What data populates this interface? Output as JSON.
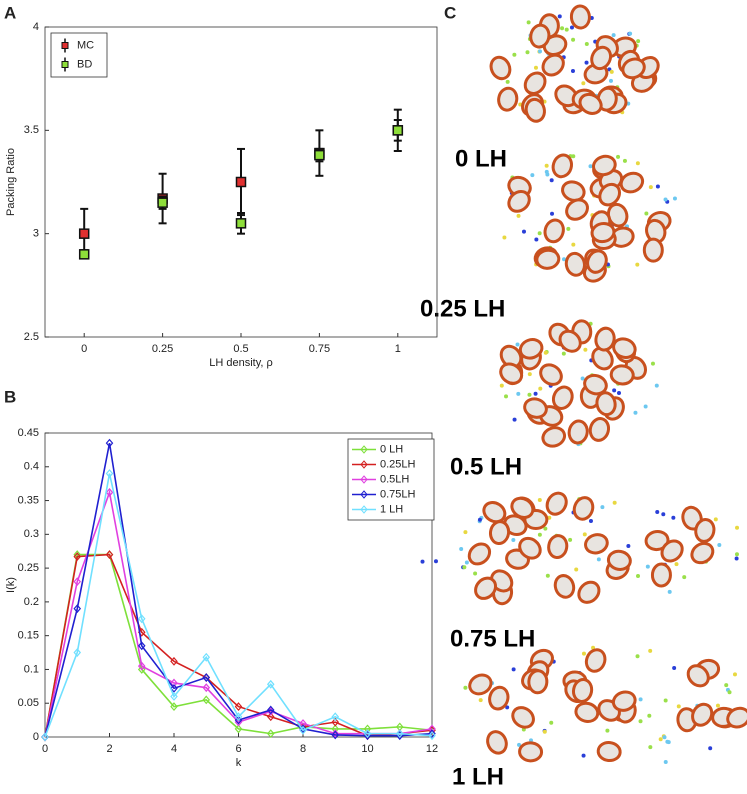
{
  "panel_labels": [
    "A",
    "B",
    "C"
  ],
  "image_labels": [
    "0 LH",
    "0.25 LH",
    "0.5 LH",
    "0.75 LH",
    "1 LH"
  ],
  "chart_data": [
    {
      "type": "errorbar",
      "xlabel": "LH density, ρ",
      "ylabel": "Packing Ratio",
      "x": [
        0,
        0.25,
        0.5,
        0.75,
        1
      ],
      "series": [
        {
          "name": "MC",
          "color": "#e03030",
          "values": [
            3.0,
            3.17,
            3.25,
            3.39,
            3.5
          ],
          "errors": [
            0.12,
            0.12,
            0.16,
            0.11,
            0.1
          ]
        },
        {
          "name": "BD",
          "color": "#8ede3a",
          "values": [
            2.9,
            3.15,
            3.05,
            3.38,
            3.5
          ],
          "errors": [
            0.02,
            0.03,
            0.05,
            0.03,
            0.05
          ]
        }
      ],
      "xlim": [
        -0.125,
        1.125
      ],
      "xticks": [
        0,
        0.25,
        0.5,
        0.75,
        1
      ],
      "ylim": [
        2.5,
        4
      ],
      "yticks": [
        2.5,
        3,
        3.5,
        4
      ],
      "legend": "upper left",
      "grid": false
    },
    {
      "type": "line",
      "xlabel": "k",
      "ylabel": "I(k)",
      "x": [
        0,
        1,
        2,
        3,
        4,
        5,
        6,
        7,
        8,
        9,
        10,
        11,
        12
      ],
      "series": [
        {
          "name": "0 LH",
          "color": "#7ee03a",
          "values": [
            0,
            0.27,
            0.27,
            0.1,
            0.045,
            0.055,
            0.012,
            0.005,
            0.015,
            0.012,
            0.012,
            0.015,
            0.01
          ]
        },
        {
          "name": "0.25LH",
          "color": "#d42020",
          "values": [
            0,
            0.267,
            0.27,
            0.155,
            0.112,
            0.088,
            0.045,
            0.03,
            0.015,
            0.022,
            0.002,
            0.005,
            0.01
          ]
        },
        {
          "name": "0.5LH",
          "color": "#e040e0",
          "values": [
            0,
            0.23,
            0.362,
            0.105,
            0.08,
            0.073,
            0.022,
            0.038,
            0.02,
            0.005,
            0.005,
            0.005,
            0.012
          ]
        },
        {
          "name": "0.75LH",
          "color": "#2020d0",
          "values": [
            0,
            0.19,
            0.435,
            0.135,
            0.072,
            0.088,
            0.025,
            0.04,
            0.012,
            0.003,
            0.002,
            0.002,
            0.005
          ]
        },
        {
          "name": "1 LH",
          "color": "#70e0ff",
          "values": [
            0,
            0.125,
            0.39,
            0.175,
            0.06,
            0.118,
            0.03,
            0.078,
            0.01,
            0.03,
            0.005,
            0.005,
            0.002
          ]
        }
      ],
      "xlim": [
        0,
        12
      ],
      "xticks": [
        0,
        2,
        4,
        6,
        8,
        10,
        12
      ],
      "ylim": [
        0,
        0.45
      ],
      "yticks": [
        0,
        0.05,
        0.1,
        0.15,
        0.2,
        0.25,
        0.3,
        0.35,
        0.4,
        0.45
      ],
      "legend": "upper right",
      "grid": false
    }
  ]
}
